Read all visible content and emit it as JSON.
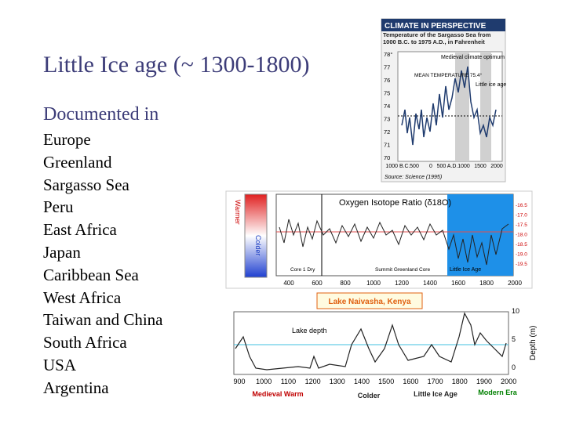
{
  "slide": {
    "title": "Little Ice age (~ 1300-1800)",
    "subtitle": "Documented in",
    "items": [
      "Europe",
      "Greenland",
      "Sargasso Sea",
      "Peru",
      "East Africa",
      "Japan",
      "Caribbean Sea",
      "West Africa",
      "Taiwan and China",
      "South Africa",
      "USA",
      "Argentina"
    ]
  },
  "sargasso": {
    "header": "CLIMATE IN PERSPECTIVE",
    "caption": "Temperature of the Sargasso Sea from 1000 B.C. to 1975 A.D., in Fahrenheit",
    "yticks": [
      "78°",
      "77",
      "76",
      "75",
      "74",
      "73",
      "72",
      "71",
      "70"
    ],
    "xticks": [
      "1000 B.C.",
      "500",
      "0",
      "500 A.D.",
      "1000",
      "1500",
      "2000"
    ],
    "optimum": "Medieval climate optimum",
    "mean": "MEAN TEMPERATURE 75.4°",
    "ice": "Little ice age",
    "source": "Source: Science (1995)"
  },
  "isotope": {
    "title": "Oxygen Isotope Ratio (δ18O)",
    "warm": "Warmer",
    "cold": "Colder",
    "core1": "Core 1 Dry",
    "core2": "Summit Greenland Core",
    "lia": "Little Ice Age",
    "xticks": [
      "400",
      "600",
      "800",
      "1000",
      "1200",
      "1400",
      "1600",
      "1800",
      "2000"
    ],
    "yticks": [
      "-16.5",
      "-17.0",
      "-17.5",
      "-18.0",
      "-18.5",
      "-19.0",
      "-19.5"
    ]
  },
  "lake": {
    "title": "Lake Naivasha, Kenya",
    "series": "Lake depth",
    "axis": "Depth (m)",
    "yticks": [
      "10",
      "5",
      "0"
    ],
    "xticks": [
      "900",
      "1000",
      "1100",
      "1200",
      "1300",
      "1400",
      "1500",
      "1600",
      "1700",
      "1800",
      "1900",
      "2000"
    ],
    "eras": [
      "Medieval Warm",
      "Colder",
      "Little Ice Age",
      "Modern Era"
    ]
  }
}
